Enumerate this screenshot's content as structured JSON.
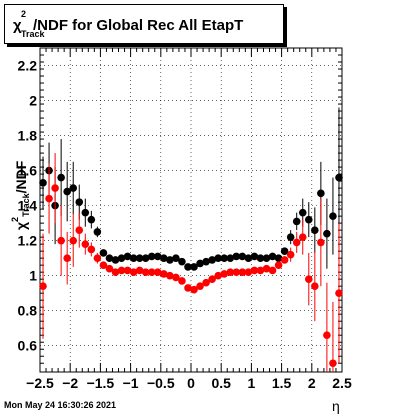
{
  "chart_data": {
    "type": "scatter",
    "title": "/NDF for Global Rec All EtapT",
    "title_prefix": "χ",
    "title_sup": "2",
    "title_sub": "Track",
    "ylabel": "/NDF",
    "ylabel_prefix": "χ",
    "ylabel_sup": "2",
    "ylabel_sub": "Track",
    "xlabel": "η",
    "xlim": [
      -2.5,
      2.5
    ],
    "ylim": [
      0.45,
      2.3
    ],
    "xticks": [
      -2.5,
      -2,
      -1.5,
      -1,
      -0.5,
      0,
      0.5,
      1,
      1.5,
      2,
      2.5
    ],
    "xtick_labels": [
      "−2.5",
      "−2",
      "−1.5",
      "−1",
      "−0.5",
      "0",
      "0.5",
      "1",
      "1.5",
      "2",
      "2.5"
    ],
    "yticks": [
      0.6,
      0.8,
      1,
      1.2,
      1.4,
      1.6,
      1.8,
      2,
      2.2
    ],
    "ytick_labels": [
      "0.6",
      "0.8",
      "1",
      "1.2",
      "1.4",
      "1.6",
      "1.8",
      "2",
      "2.2"
    ],
    "grid": true,
    "series": [
      {
        "color": "#000000",
        "x": [
          -2.45,
          -2.35,
          -2.25,
          -2.15,
          -2.05,
          -1.95,
          -1.85,
          -1.75,
          -1.65,
          -1.55,
          -1.45,
          -1.35,
          -1.25,
          -1.15,
          -1.05,
          -0.95,
          -0.85,
          -0.75,
          -0.65,
          -0.55,
          -0.45,
          -0.35,
          -0.25,
          -0.15,
          -0.05,
          0.05,
          0.15,
          0.25,
          0.35,
          0.45,
          0.55,
          0.65,
          0.75,
          0.85,
          0.95,
          1.05,
          1.15,
          1.25,
          1.35,
          1.45,
          1.55,
          1.65,
          1.75,
          1.85,
          1.95,
          2.05,
          2.15,
          2.25,
          2.35,
          2.45
        ],
        "y": [
          1.53,
          1.6,
          1.4,
          1.56,
          1.48,
          1.5,
          1.42,
          1.36,
          1.32,
          1.25,
          1.13,
          1.1,
          1.09,
          1.1,
          1.11,
          1.1,
          1.1,
          1.1,
          1.11,
          1.11,
          1.1,
          1.09,
          1.1,
          1.08,
          1.05,
          1.05,
          1.07,
          1.08,
          1.09,
          1.1,
          1.1,
          1.1,
          1.11,
          1.11,
          1.1,
          1.11,
          1.1,
          1.1,
          1.11,
          1.1,
          1.14,
          1.22,
          1.31,
          1.36,
          1.32,
          1.26,
          1.47,
          1.24,
          1.34,
          1.56
        ],
        "yerr": [
          0.15,
          0.16,
          0.22,
          0.22,
          0.17,
          0.15,
          0.1,
          0.08,
          0.05,
          0.03,
          0.01,
          0.01,
          0.01,
          0.01,
          0.01,
          0.01,
          0.01,
          0.01,
          0.01,
          0.01,
          0.01,
          0.01,
          0.01,
          0.01,
          0.01,
          0.01,
          0.01,
          0.01,
          0.01,
          0.01,
          0.01,
          0.01,
          0.01,
          0.01,
          0.01,
          0.01,
          0.01,
          0.01,
          0.01,
          0.01,
          0.02,
          0.04,
          0.05,
          0.08,
          0.1,
          0.13,
          0.18,
          0.2,
          0.22,
          0.4
        ]
      },
      {
        "color": "#ff0000",
        "x": [
          -2.45,
          -2.35,
          -2.25,
          -2.15,
          -2.05,
          -1.95,
          -1.85,
          -1.75,
          -1.65,
          -1.55,
          -1.45,
          -1.35,
          -1.25,
          -1.15,
          -1.05,
          -0.95,
          -0.85,
          -0.75,
          -0.65,
          -0.55,
          -0.45,
          -0.35,
          -0.25,
          -0.15,
          -0.05,
          0.05,
          0.15,
          0.25,
          0.35,
          0.45,
          0.55,
          0.65,
          0.75,
          0.85,
          0.95,
          1.05,
          1.15,
          1.25,
          1.35,
          1.45,
          1.55,
          1.65,
          1.75,
          1.85,
          1.95,
          2.05,
          2.15,
          2.25,
          2.35,
          2.45
        ],
        "y": [
          0.94,
          1.44,
          1.5,
          1.2,
          1.1,
          1.2,
          1.26,
          1.18,
          1.15,
          1.1,
          1.06,
          1.04,
          1.02,
          1.03,
          1.03,
          1.02,
          1.03,
          1.02,
          1.02,
          1.02,
          1.01,
          1.0,
          0.99,
          0.97,
          0.93,
          0.92,
          0.94,
          0.96,
          0.98,
          1.0,
          1.01,
          1.02,
          1.02,
          1.02,
          1.02,
          1.03,
          1.03,
          1.04,
          1.03,
          1.06,
          1.09,
          1.12,
          1.19,
          1.22,
          0.98,
          0.94,
          1.19,
          0.66,
          0.5,
          0.9
        ],
        "yerr": [
          0.3,
          0.2,
          0.2,
          0.2,
          0.15,
          0.15,
          0.1,
          0.06,
          0.04,
          0.03,
          0.01,
          0.01,
          0.01,
          0.01,
          0.01,
          0.01,
          0.01,
          0.01,
          0.01,
          0.01,
          0.01,
          0.01,
          0.01,
          0.01,
          0.01,
          0.01,
          0.01,
          0.01,
          0.01,
          0.01,
          0.01,
          0.01,
          0.01,
          0.01,
          0.01,
          0.01,
          0.01,
          0.01,
          0.01,
          0.01,
          0.02,
          0.04,
          0.06,
          0.1,
          0.15,
          0.2,
          0.25,
          0.3,
          0.35,
          0.4
        ]
      }
    ]
  },
  "footer": {
    "timestamp": "Mon May 24 16:30:26 2021"
  }
}
